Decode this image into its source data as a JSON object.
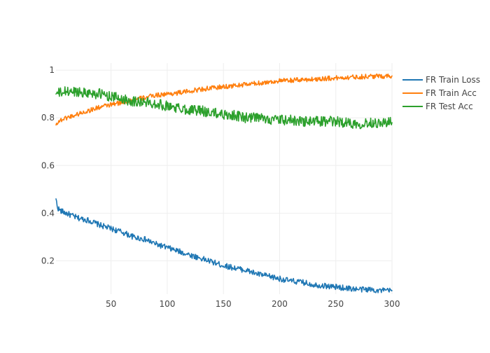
{
  "chart_data": {
    "type": "line",
    "title": "",
    "xlabel": "",
    "ylabel": "",
    "xlim": [
      1,
      300
    ],
    "ylim": [
      0.06,
      1.03
    ],
    "x_ticks": [
      50,
      100,
      150,
      200,
      250,
      300
    ],
    "y_ticks": [
      0.2,
      0.4,
      0.6,
      0.8,
      1
    ],
    "x_tick_labels": [
      "50",
      "100",
      "150",
      "200",
      "250",
      "300"
    ],
    "y_tick_labels": [
      "0.2",
      "0.4",
      "0.6",
      "0.8",
      "1"
    ],
    "grid": true,
    "legend_position": "top-right",
    "series": [
      {
        "name": "FR Train Loss",
        "color": "#1f77b4",
        "x": [
          1,
          2,
          3,
          5,
          10,
          20,
          30,
          40,
          50,
          60,
          70,
          80,
          90,
          100,
          110,
          120,
          130,
          140,
          150,
          160,
          170,
          180,
          190,
          200,
          210,
          220,
          230,
          240,
          250,
          260,
          270,
          280,
          290,
          300
        ],
        "y": [
          0.46,
          0.43,
          0.42,
          0.41,
          0.4,
          0.38,
          0.37,
          0.35,
          0.335,
          0.32,
          0.3,
          0.29,
          0.27,
          0.255,
          0.24,
          0.225,
          0.21,
          0.195,
          0.18,
          0.17,
          0.16,
          0.145,
          0.135,
          0.125,
          0.115,
          0.11,
          0.1,
          0.095,
          0.09,
          0.085,
          0.08,
          0.08,
          0.075,
          0.075
        ]
      },
      {
        "name": "FR Train Acc",
        "color": "#ff7f0e",
        "x": [
          1,
          2,
          5,
          10,
          20,
          30,
          40,
          50,
          60,
          70,
          80,
          90,
          100,
          110,
          120,
          130,
          140,
          150,
          160,
          170,
          180,
          190,
          200,
          210,
          220,
          230,
          240,
          250,
          260,
          270,
          280,
          290,
          300
        ],
        "y": [
          0.77,
          0.78,
          0.79,
          0.8,
          0.815,
          0.83,
          0.845,
          0.855,
          0.865,
          0.875,
          0.885,
          0.895,
          0.9,
          0.905,
          0.912,
          0.92,
          0.925,
          0.93,
          0.935,
          0.94,
          0.945,
          0.95,
          0.955,
          0.957,
          0.96,
          0.962,
          0.965,
          0.967,
          0.97,
          0.972,
          0.974,
          0.975,
          0.976
        ]
      },
      {
        "name": "FR Test Acc",
        "color": "#2ca02c",
        "x": [
          1,
          5,
          10,
          20,
          30,
          40,
          50,
          60,
          70,
          80,
          90,
          100,
          110,
          120,
          130,
          140,
          150,
          160,
          170,
          180,
          190,
          200,
          210,
          220,
          230,
          240,
          250,
          260,
          270,
          280,
          290,
          300
        ],
        "y": [
          0.9,
          0.905,
          0.91,
          0.91,
          0.905,
          0.9,
          0.89,
          0.88,
          0.87,
          0.865,
          0.86,
          0.85,
          0.84,
          0.835,
          0.83,
          0.82,
          0.815,
          0.81,
          0.8,
          0.8,
          0.795,
          0.79,
          0.79,
          0.785,
          0.785,
          0.785,
          0.785,
          0.78,
          0.775,
          0.78,
          0.78,
          0.78
        ]
      }
    ]
  }
}
